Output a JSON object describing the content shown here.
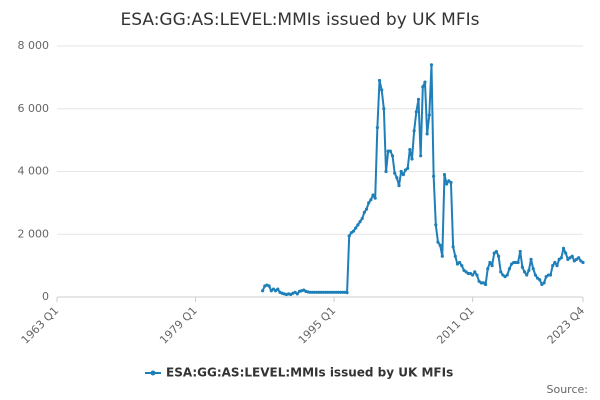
{
  "chart_data": {
    "type": "line",
    "title": "ESA:GG:AS:LEVEL:MMIs issued by UK MFIs",
    "source": "Source:",
    "x": [
      "1986 Q4",
      "1987 Q1",
      "1987 Q2",
      "1987 Q3",
      "1987 Q4",
      "1988 Q1",
      "1988 Q2",
      "1988 Q3",
      "1988 Q4",
      "1989 Q1",
      "1989 Q2",
      "1989 Q3",
      "1989 Q4",
      "1990 Q1",
      "1990 Q2",
      "1990 Q3",
      "1990 Q4",
      "1991 Q1",
      "1991 Q2",
      "1991 Q3",
      "1991 Q4",
      "1992 Q1",
      "1992 Q2",
      "1992 Q3",
      "1992 Q4",
      "1993 Q1",
      "1993 Q2",
      "1993 Q3",
      "1993 Q4",
      "1994 Q1",
      "1994 Q2",
      "1994 Q3",
      "1994 Q4",
      "1995 Q1",
      "1995 Q2",
      "1995 Q3",
      "1995 Q4",
      "1996 Q1",
      "1996 Q2",
      "1996 Q3",
      "1996 Q4",
      "1997 Q1",
      "1997 Q2",
      "1997 Q3",
      "1997 Q4",
      "1998 Q1",
      "1998 Q2",
      "1998 Q3",
      "1998 Q4",
      "1999 Q1",
      "1999 Q2",
      "1999 Q3",
      "1999 Q4",
      "2000 Q1",
      "2000 Q2",
      "2000 Q3",
      "2000 Q4",
      "2001 Q1",
      "2001 Q2",
      "2001 Q3",
      "2001 Q4",
      "2002 Q1",
      "2002 Q2",
      "2002 Q3",
      "2002 Q4",
      "2003 Q1",
      "2003 Q2",
      "2003 Q3",
      "2003 Q4",
      "2004 Q1",
      "2004 Q2",
      "2004 Q3",
      "2004 Q4",
      "2005 Q1",
      "2005 Q2",
      "2005 Q3",
      "2005 Q4",
      "2006 Q1",
      "2006 Q2",
      "2006 Q3",
      "2006 Q4",
      "2007 Q1",
      "2007 Q2",
      "2007 Q3",
      "2007 Q4",
      "2008 Q1",
      "2008 Q2",
      "2008 Q3",
      "2008 Q4",
      "2009 Q1",
      "2009 Q2",
      "2009 Q3",
      "2009 Q4",
      "2010 Q1",
      "2010 Q2",
      "2010 Q3",
      "2010 Q4",
      "2011 Q1",
      "2011 Q2",
      "2011 Q3",
      "2011 Q4",
      "2012 Q1",
      "2012 Q2",
      "2012 Q3",
      "2012 Q4",
      "2013 Q1",
      "2013 Q2",
      "2013 Q3",
      "2013 Q4",
      "2014 Q1",
      "2014 Q2",
      "2014 Q3",
      "2014 Q4",
      "2015 Q1",
      "2015 Q2",
      "2015 Q3",
      "2015 Q4",
      "2016 Q1",
      "2016 Q2",
      "2016 Q3",
      "2016 Q4",
      "2017 Q1",
      "2017 Q2",
      "2017 Q3",
      "2017 Q4",
      "2018 Q1",
      "2018 Q2",
      "2018 Q3",
      "2018 Q4",
      "2019 Q1",
      "2019 Q2",
      "2019 Q3",
      "2019 Q4",
      "2020 Q1",
      "2020 Q2",
      "2020 Q3",
      "2020 Q4",
      "2021 Q1",
      "2021 Q2",
      "2021 Q3",
      "2021 Q4",
      "2022 Q1",
      "2022 Q2",
      "2022 Q3",
      "2022 Q4",
      "2023 Q1",
      "2023 Q2",
      "2023 Q3",
      "2023 Q4"
    ],
    "series": [
      {
        "name": "ESA:GG:AS:LEVEL:MMIs issued by UK MFIs",
        "color": "#1f7fb8",
        "values": [
          200,
          350,
          380,
          350,
          200,
          250,
          200,
          250,
          150,
          120,
          100,
          80,
          100,
          80,
          120,
          150,
          100,
          180,
          200,
          220,
          180,
          160,
          150,
          150,
          150,
          150,
          150,
          150,
          150,
          150,
          150,
          150,
          150,
          150,
          150,
          150,
          150,
          150,
          150,
          140,
          1950,
          2050,
          2100,
          2200,
          2300,
          2400,
          2500,
          2700,
          2800,
          3000,
          3100,
          3250,
          3150,
          5400,
          6900,
          6600,
          6000,
          4000,
          4650,
          4650,
          4500,
          3950,
          3800,
          3550,
          4000,
          3900,
          4050,
          4100,
          4700,
          4400,
          5300,
          5900,
          6300,
          4500,
          6700,
          6850,
          5200,
          5800,
          7400,
          3850,
          2300,
          1750,
          1650,
          1300,
          3900,
          3600,
          3700,
          3650,
          1600,
          1300,
          1050,
          1100,
          1000,
          850,
          800,
          750,
          750,
          700,
          800,
          700,
          500,
          450,
          450,
          400,
          900,
          1100,
          1000,
          1400,
          1450,
          1300,
          800,
          700,
          650,
          700,
          900,
          1050,
          1100,
          1100,
          1100,
          1450,
          950,
          800,
          700,
          850,
          1200,
          900,
          700,
          600,
          550,
          400,
          450,
          650,
          700,
          700,
          1000,
          1100,
          1000,
          1200,
          1250,
          1550,
          1400,
          1200,
          1250,
          1300,
          1150,
          1200,
          1250,
          1150,
          1100
        ]
      }
    ],
    "xlim": [
      "1963 Q1",
      "2023 Q4"
    ],
    "xticks": [
      "1963 Q1",
      "1979 Q1",
      "1995 Q1",
      "2011 Q1",
      "2023 Q4"
    ],
    "ylim": [
      0,
      8000
    ],
    "yticks": [
      0,
      {
        "value": 2000,
        "label": "2 000"
      },
      {
        "value": 4000,
        "label": "4 000"
      },
      {
        "value": 6000,
        "label": "6 000"
      },
      {
        "value": 8000,
        "label": "8 000"
      }
    ],
    "grid": true
  }
}
